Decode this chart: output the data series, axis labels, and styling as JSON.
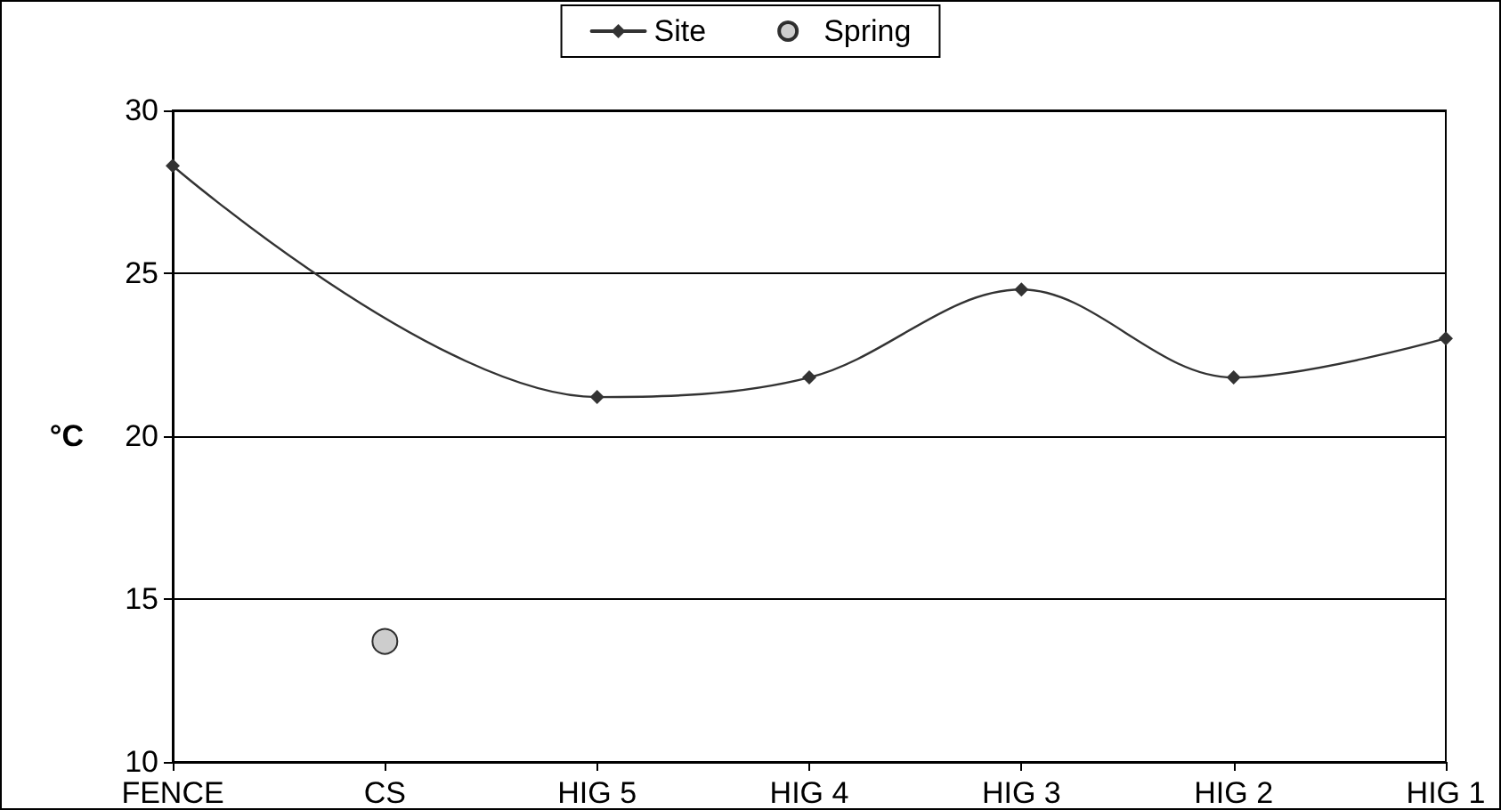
{
  "chart_data": {
    "type": "line",
    "ylabel": "°C",
    "categories": [
      "FENCE",
      "CS",
      "HIG 5",
      "HIG 4",
      "HIG 3",
      "HIG 2",
      "HIG 1"
    ],
    "series": [
      {
        "name": "Site",
        "color": "#333333",
        "marker": "diamond",
        "values": [
          28.3,
          null,
          21.2,
          21.8,
          24.5,
          21.8,
          23.0
        ]
      },
      {
        "name": "Spring",
        "type": "scatter",
        "marker": "circle",
        "color": "#c0c0c0",
        "values": [
          null,
          13.7,
          null,
          null,
          null,
          null,
          null
        ]
      }
    ],
    "ylim": [
      10,
      30
    ],
    "yticks": [
      10,
      15,
      20,
      25,
      30
    ],
    "grid": "y",
    "legend": "top",
    "line_style": "solid"
  }
}
